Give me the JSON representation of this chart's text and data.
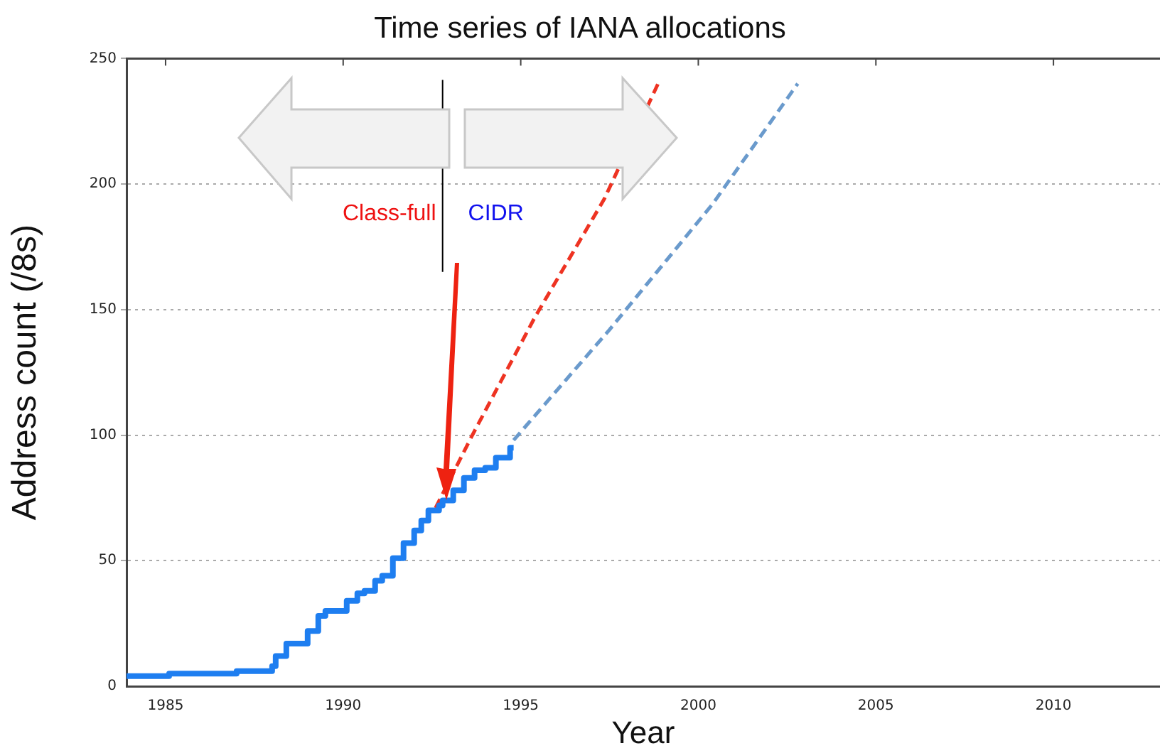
{
  "chart_data": {
    "type": "line",
    "title": "Time series of IANA allocations",
    "xlabel": "Year",
    "ylabel": "Address count (/8s)",
    "xlim": [
      1983.9,
      2013
    ],
    "xticks": [
      1985,
      1990,
      1995,
      2000,
      2005,
      2010
    ],
    "ylim": [
      0,
      250
    ],
    "yticks": [
      0,
      50,
      100,
      150,
      200,
      250
    ],
    "grid": "y",
    "legend": false,
    "marker": "none",
    "series": [
      {
        "type": "step",
        "color": "#1e7ef0",
        "line_style": "solid",
        "x": [
          1983.9,
          1985.1,
          1987.0,
          1988.0,
          1988.1,
          1988.4,
          1988.8,
          1989.0,
          1989.3,
          1989.5,
          1989.9,
          1990.1,
          1990.4,
          1990.6,
          1990.9,
          1991.1,
          1991.4,
          1991.7,
          1992.0,
          1992.2,
          1992.4,
          1992.7,
          1992.8,
          1993.1,
          1993.4,
          1993.7,
          1994.0,
          1994.3,
          1994.7,
          1994.8
        ],
        "values": [
          4,
          5,
          6,
          8,
          12,
          17,
          17,
          22,
          28,
          30,
          30,
          34,
          37,
          38,
          42,
          44,
          51,
          57,
          62,
          66,
          70,
          72,
          74,
          78,
          83,
          86,
          87,
          91,
          95,
          95
        ]
      },
      {
        "color": "#ee3322",
        "line_style": "dashed",
        "x": [
          1992.6,
          1993.6,
          1995.4,
          1997.35,
          1998.9
        ],
        "values": [
          71,
          99,
          147,
          194,
          241
        ]
      },
      {
        "color": "#6a9acc",
        "line_style": "dashed",
        "x": [
          1994.8,
          1997.5,
          2000.4,
          2002.8
        ],
        "values": [
          98,
          142,
          192,
          240
        ]
      }
    ],
    "ref_lines": [
      {
        "axis": "x",
        "value": 1992.8,
        "label": null,
        "color": "#000000"
      }
    ],
    "annotations": [
      "Class-full",
      "CIDR"
    ]
  }
}
